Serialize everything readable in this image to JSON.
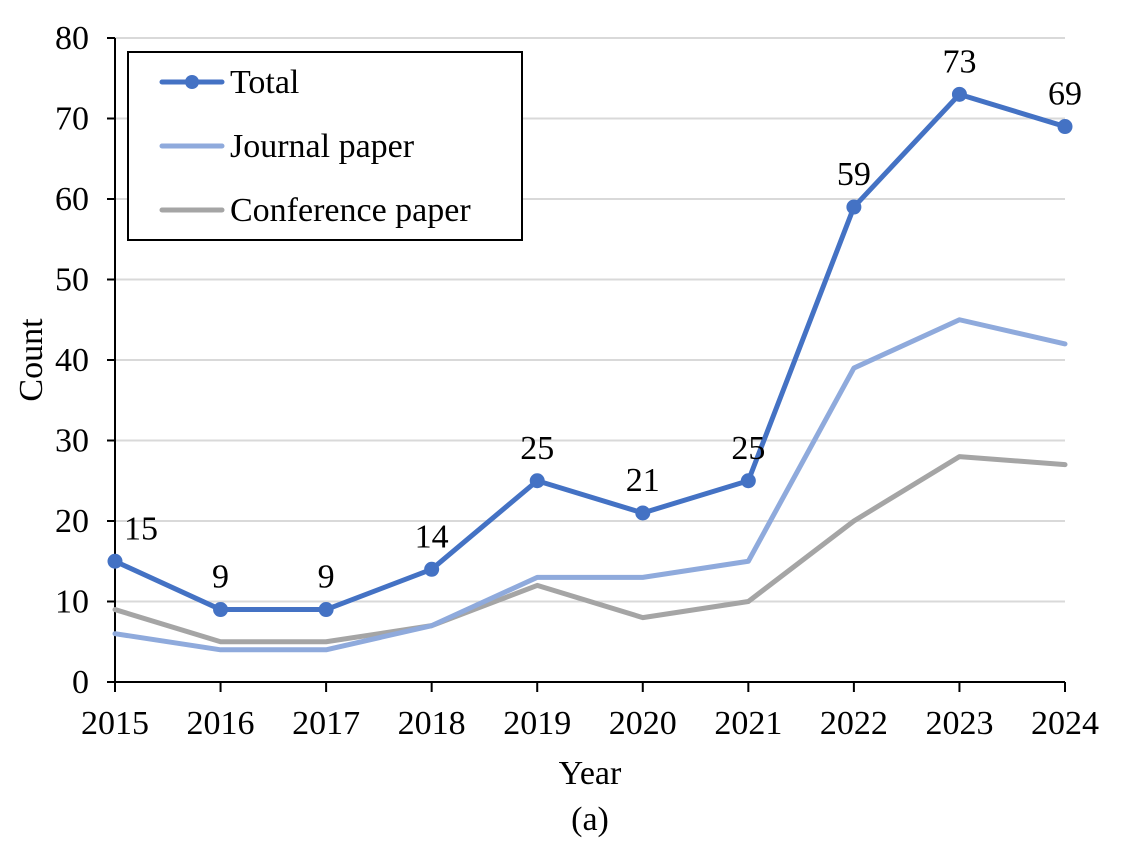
{
  "chart_data": {
    "type": "line",
    "title": "",
    "xlabel": "Year",
    "ylabel": "Count",
    "caption": "(a)",
    "x": [
      2015,
      2016,
      2017,
      2018,
      2019,
      2020,
      2021,
      2022,
      2023,
      2024
    ],
    "x_ticks": [
      "2015",
      "2016",
      "2017",
      "2018",
      "2019",
      "2020",
      "2021",
      "2022",
      "2023",
      "2024"
    ],
    "ylim": [
      0,
      80
    ],
    "y_ticks": [
      "0",
      "10",
      "20",
      "30",
      "40",
      "50",
      "60",
      "70",
      "80"
    ],
    "grid": "horizontal",
    "legend_position": "top-left",
    "series": [
      {
        "name": "Total",
        "color": "#4472C4",
        "markers": true,
        "data_labels": true,
        "values": [
          15,
          9,
          9,
          14,
          25,
          21,
          25,
          59,
          73,
          69
        ]
      },
      {
        "name": "Journal paper",
        "color": "#8FAADC",
        "markers": false,
        "data_labels": false,
        "values": [
          6,
          4,
          4,
          7,
          13,
          13,
          15,
          39,
          45,
          42
        ]
      },
      {
        "name": "Conference paper",
        "color": "#A5A5A5",
        "markers": false,
        "data_labels": false,
        "values": [
          9,
          5,
          5,
          7,
          12,
          8,
          10,
          20,
          28,
          27
        ]
      }
    ]
  }
}
